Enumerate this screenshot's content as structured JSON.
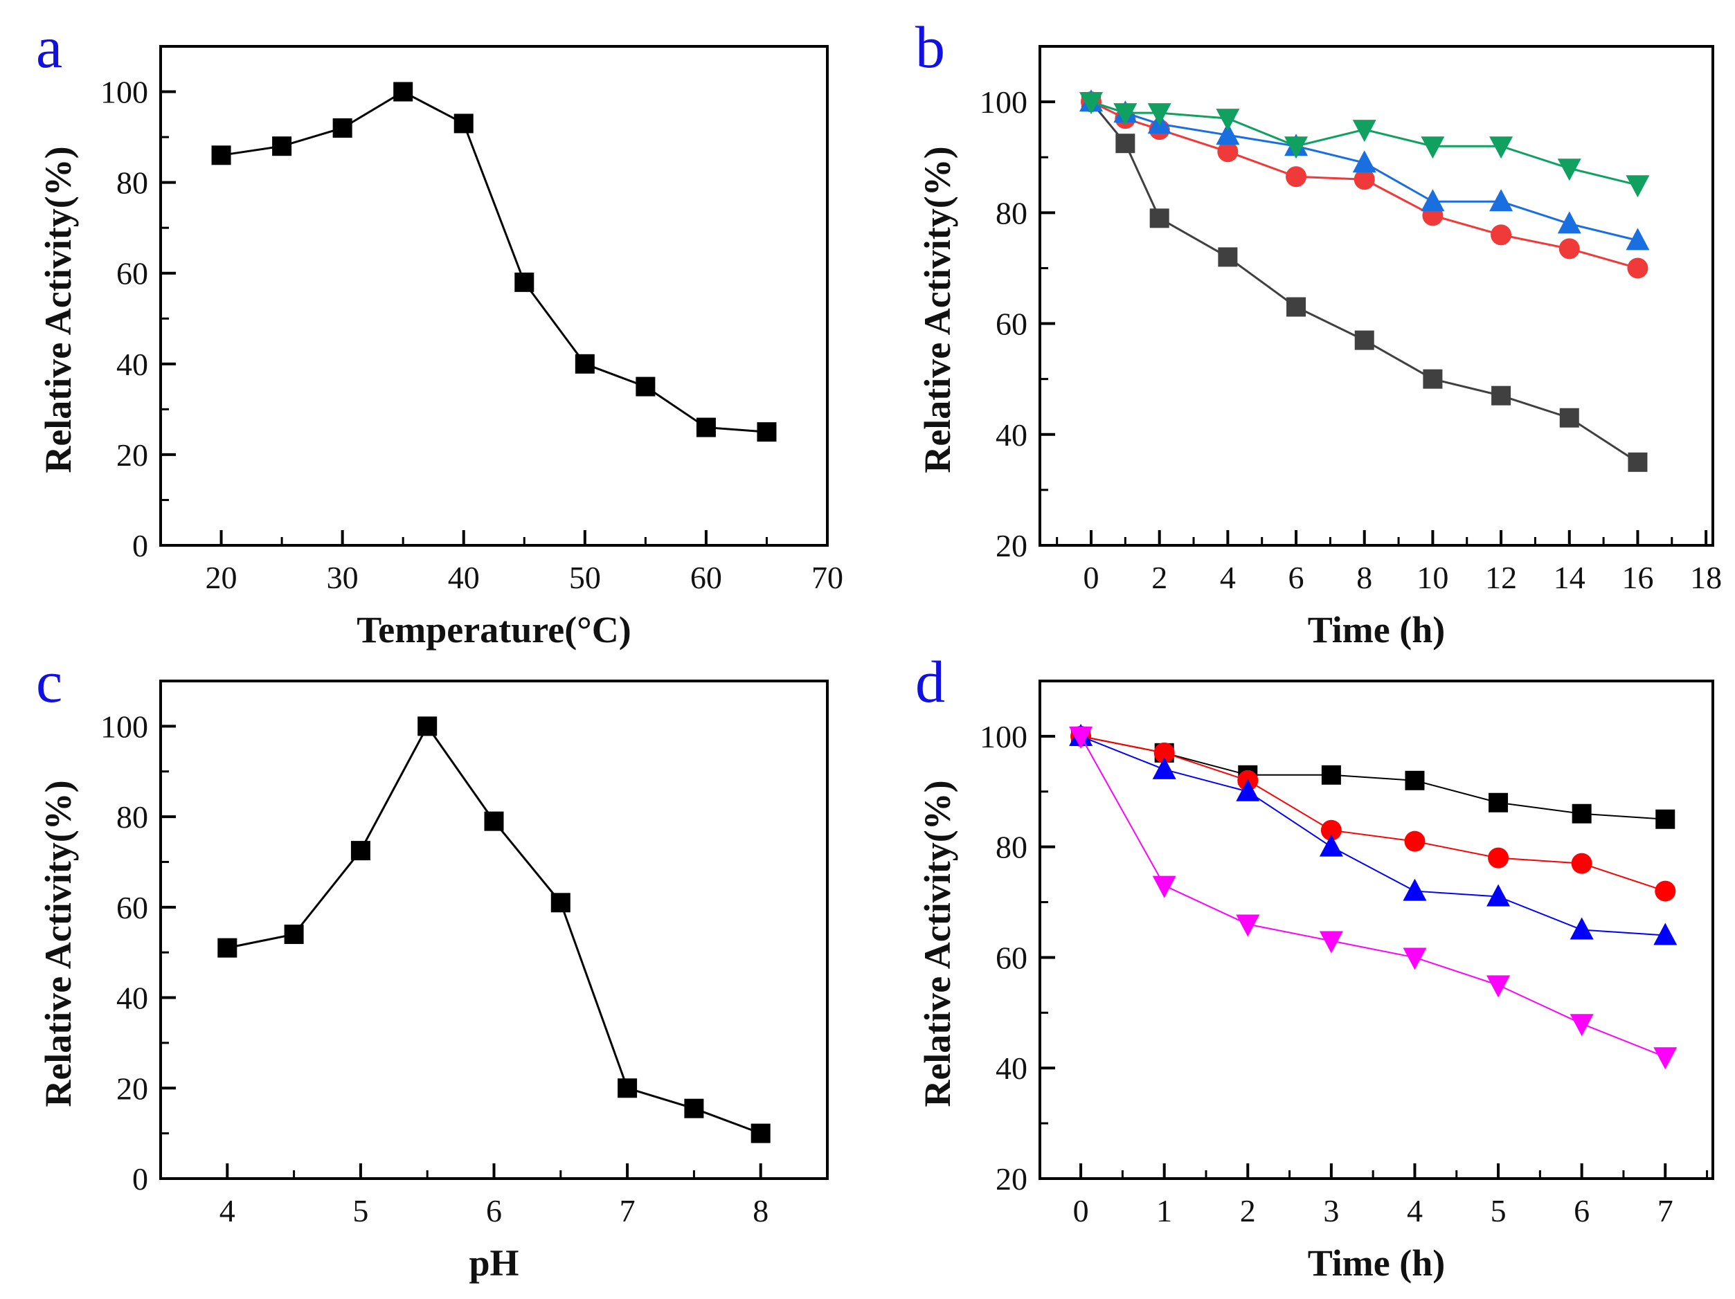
{
  "chart_data": [
    {
      "panel": "a",
      "type": "line",
      "xlabel": "Temperature(°C)",
      "ylabel": "Relative Activity(%)",
      "xlim": [
        15,
        70
      ],
      "ylim": [
        0,
        110
      ],
      "xticks": [
        20,
        30,
        40,
        50,
        60,
        70
      ],
      "yticks": [
        0,
        20,
        40,
        60,
        80,
        100
      ],
      "x": [
        20,
        25,
        30,
        35,
        40,
        45,
        50,
        55,
        60,
        65
      ],
      "series": [
        {
          "name": "activity",
          "color": "#000000",
          "marker": "square",
          "values": [
            86,
            88,
            92,
            100,
            93,
            58,
            40,
            35,
            26,
            25
          ]
        }
      ]
    },
    {
      "panel": "b",
      "type": "line",
      "xlabel": "Time (h)",
      "ylabel": "Relative Activity(%)",
      "xlim": [
        -1.5,
        18.2
      ],
      "ylim": [
        20,
        110
      ],
      "xticks": [
        0,
        2,
        4,
        6,
        8,
        10,
        12,
        14,
        16,
        18
      ],
      "yticks": [
        20,
        40,
        60,
        80,
        100
      ],
      "x": [
        0,
        1,
        2,
        4,
        6,
        8,
        10,
        12,
        14,
        16
      ],
      "series": [
        {
          "name": "black",
          "color": "#404040",
          "marker": "square",
          "values": [
            100,
            92.5,
            79,
            72,
            63,
            57,
            50,
            47,
            43,
            35
          ]
        },
        {
          "name": "red",
          "color": "#f03a3a",
          "marker": "circle",
          "values": [
            100,
            97,
            95,
            91,
            86.5,
            86,
            79.5,
            76,
            73.5,
            70
          ]
        },
        {
          "name": "blue",
          "color": "#1a6fe0",
          "marker": "triangle-up",
          "values": [
            100,
            98,
            96,
            94,
            92,
            89,
            82,
            82,
            78,
            75
          ]
        },
        {
          "name": "green",
          "color": "#10a060",
          "marker": "triangle-down",
          "values": [
            100,
            98,
            98,
            97,
            92,
            95,
            92,
            92,
            88,
            85
          ]
        }
      ]
    },
    {
      "panel": "c",
      "type": "line",
      "xlabel": "pH",
      "ylabel": "Relative Activity(%)",
      "xlim": [
        3.5,
        8.5
      ],
      "ylim": [
        0,
        110
      ],
      "xticks": [
        4,
        5,
        6,
        7,
        8
      ],
      "yticks": [
        0,
        20,
        40,
        60,
        80,
        100
      ],
      "x": [
        4,
        4.5,
        5,
        5.5,
        6,
        6.5,
        7,
        7.5,
        8
      ],
      "series": [
        {
          "name": "activity",
          "color": "#000000",
          "marker": "square",
          "values": [
            51,
            54,
            72.5,
            100,
            79,
            61,
            20,
            15.5,
            10
          ]
        }
      ]
    },
    {
      "panel": "d",
      "type": "line",
      "xlabel": "Time (h)",
      "ylabel": "Relative Activity(%)",
      "xlim": [
        -0.49,
        7.57
      ],
      "ylim": [
        20,
        110
      ],
      "xticks": [
        0,
        1,
        2,
        3,
        4,
        5,
        6,
        7
      ],
      "yticks": [
        20,
        40,
        60,
        80,
        100
      ],
      "x": [
        0,
        1,
        2,
        3,
        4,
        5,
        6,
        7
      ],
      "series": [
        {
          "name": "black",
          "color": "#000000",
          "marker": "square",
          "values": [
            100,
            97,
            93,
            93,
            92,
            88,
            86,
            85
          ]
        },
        {
          "name": "red",
          "color": "#ff0000",
          "marker": "circle",
          "values": [
            100,
            97,
            92,
            83,
            81,
            78,
            77,
            72
          ]
        },
        {
          "name": "blue",
          "color": "#0000ff",
          "marker": "triangle-up",
          "values": [
            100,
            94,
            90,
            80,
            72,
            71,
            65,
            64
          ]
        },
        {
          "name": "magenta",
          "color": "#ff00ff",
          "marker": "triangle-down",
          "values": [
            100,
            73,
            66,
            63,
            60,
            55,
            48,
            42
          ]
        }
      ]
    }
  ]
}
